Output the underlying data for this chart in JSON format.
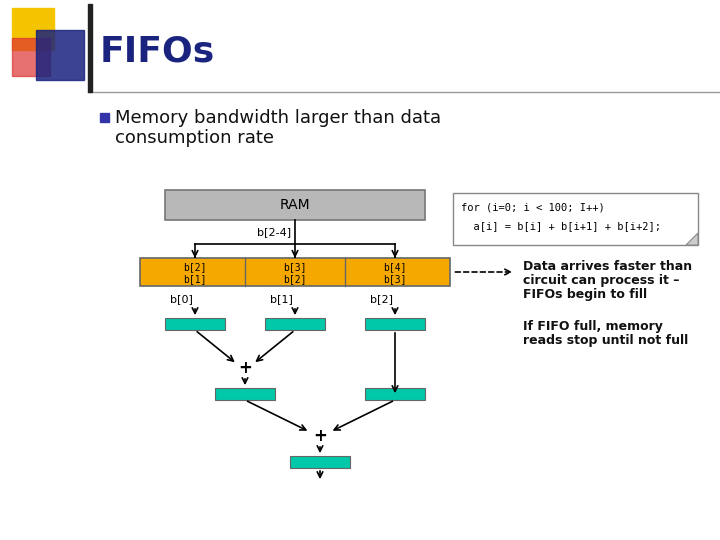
{
  "title": "FIFOs",
  "bullet_text_line1": "Memory bandwidth larger than data",
  "bullet_text_line2": "consumption rate",
  "ram_label": "RAM",
  "bus_label": "b[2-4]",
  "fifo_cell_labels": [
    [
      "b[2]",
      "b[1]"
    ],
    [
      "b[3]",
      "b[2]"
    ],
    [
      "b[4]",
      "b[3]"
    ]
  ],
  "fifo_labels_bottom": [
    "b[0]",
    "b[1]",
    "b[2]"
  ],
  "code_line1": "for (i=0; i < 100; I++)",
  "code_line2": "  a[i] = b[i] + b[i+1] + b[i+2];",
  "annotation1_line1": "Data arrives faster than",
  "annotation1_line2": "circuit can process it –",
  "annotation1_line3": "FIFOs begin to fill",
  "annotation2_line1": "If FIFO full, memory",
  "annotation2_line2": "reads stop until not full",
  "bg_color": "#ffffff",
  "title_color": "#1a237e",
  "ram_fill": "#b8b8b8",
  "ram_edge": "#777777",
  "fifo_fill_orange": "#f5a800",
  "fifo_fill_green": "#00c8a8",
  "fifo_edge": "#666666",
  "arrow_color": "#111111",
  "bullet_color": "#3333aa",
  "text_color": "#111111",
  "yellow_sq": "#f5c400",
  "red_sq": "#dd3333",
  "blue_sq": "#1a237e",
  "bar_color": "#222222",
  "code_border": "#888888",
  "code_bg": "#ffffff",
  "dog_ear_color": "#cccccc"
}
